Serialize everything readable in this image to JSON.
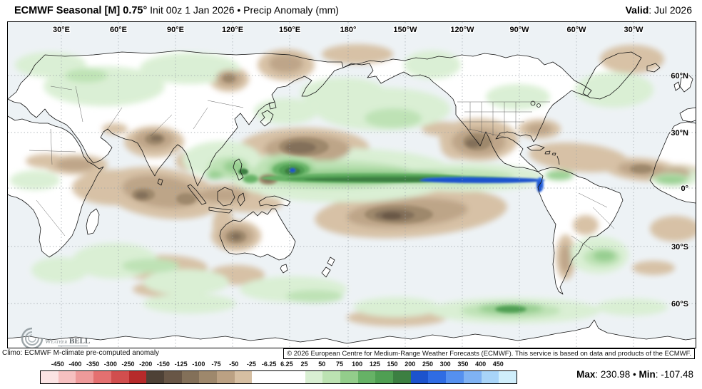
{
  "header": {
    "title_strong": "ECMWF Seasonal [M] 0.75°",
    "title_rest": " Init 00z 1 Jan 2026 • Precip Anomaly (mm)",
    "valid_strong": "Valid",
    "valid_rest": ": Jul 2026"
  },
  "map": {
    "lon_labels": [
      "30°E",
      "60°E",
      "90°E",
      "120°E",
      "150°E",
      "180°",
      "150°W",
      "120°W",
      "90°W",
      "60°W",
      "30°W"
    ],
    "lat_labels": [
      "60°N",
      "30°N",
      "0°",
      "30°S",
      "60°S"
    ]
  },
  "logo": {
    "weather": "Weather",
    "bell": "BELL"
  },
  "footer": {
    "climo": "Climo: ECMWF M-climate pre-computed anomaly",
    "copyright": "© 2026 European Centre for Medium-Range Weather Forecasts (ECMWF). This service is based on data and products of the ECMWF."
  },
  "legend": {
    "ticks": [
      "-450",
      "-400",
      "-350",
      "-300",
      "-250",
      "-200",
      "-150",
      "-125",
      "-100",
      "-75",
      "-50",
      "-25",
      "-6.25",
      "6.25",
      "25",
      "50",
      "75",
      "100",
      "125",
      "150",
      "200",
      "250",
      "300",
      "350",
      "400",
      "450"
    ],
    "colors": [
      "#fbe4e4",
      "#f6c0c0",
      "#ee9a9a",
      "#e47070",
      "#d14e4e",
      "#b62a2a",
      "#4e4136",
      "#685646",
      "#837059",
      "#9e886c",
      "#bba183",
      "#d6bfa2",
      "#ffffff",
      "#ffffff",
      "#ffffff",
      "#d9efd3",
      "#bce2b2",
      "#93cd8b",
      "#66b266",
      "#4f9f53",
      "#3c7f42",
      "#1c53cd",
      "#2f6ce4",
      "#5590ef",
      "#7fb2f3",
      "#a8d4f8",
      "#cfeefb"
    ],
    "max_label": "Max",
    "max_value": ": 230.98",
    "sep": " • ",
    "min_label": "Min",
    "min_value": ": -107.48"
  }
}
